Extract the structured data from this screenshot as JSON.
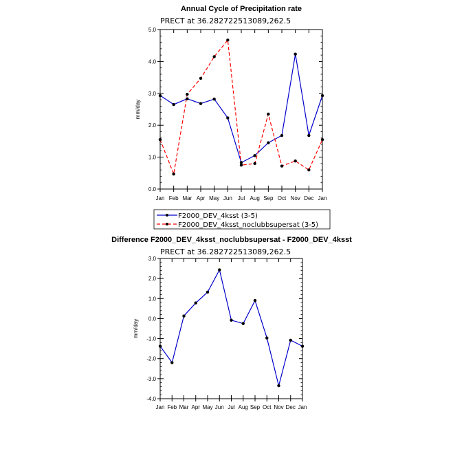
{
  "chart_data": [
    {
      "type": "line",
      "title": "Annual Cycle of Precipitation rate",
      "subtitle": "PRECT at 36.282722513089,262.5",
      "xlabel": "",
      "ylabel": "mm/day",
      "categories": [
        "Jan",
        "Feb",
        "Mar",
        "Apr",
        "May",
        "Jun",
        "Jul",
        "Aug",
        "Sep",
        "Oct",
        "Nov",
        "Dec",
        "Jan"
      ],
      "ylim": [
        0,
        5
      ],
      "yticks": [
        "0.0",
        "1.0",
        "2.0",
        "3.0",
        "4.0",
        "5.0"
      ],
      "legend_position": "bottom",
      "series": [
        {
          "name": "F2000_DEV_4ksst (3-5)",
          "color": "#0000cc",
          "dash": "solid",
          "values": [
            2.93,
            2.65,
            2.83,
            2.68,
            2.82,
            2.23,
            0.83,
            1.05,
            1.45,
            1.68,
            4.23,
            1.68,
            2.93
          ]
        },
        {
          "name": "F2000_DEV_4ksst_noclubbsupersat (3-5)",
          "color": "#ff0000",
          "dash": "dashed",
          "values": [
            1.55,
            0.47,
            2.97,
            3.47,
            4.15,
            4.67,
            0.75,
            0.8,
            2.35,
            0.72,
            0.88,
            0.6,
            1.55
          ]
        }
      ]
    },
    {
      "type": "line",
      "title": "Difference F2000_DEV_4ksst_noclubbsupersat - F2000_DEV_4ksst",
      "subtitle": "PRECT at 36.282722513089,262.5",
      "xlabel": "",
      "ylabel": "mm/day",
      "categories": [
        "Jan",
        "Feb",
        "Mar",
        "Apr",
        "May",
        "Jun",
        "Jul",
        "Aug",
        "Sep",
        "Oct",
        "Nov",
        "Dec",
        "Jan"
      ],
      "ylim": [
        -4,
        3
      ],
      "yticks": [
        "-4.0",
        "-3.0",
        "-2.0",
        "-1.0",
        "0.0",
        "1.0",
        "2.0",
        "3.0"
      ],
      "series": [
        {
          "name": "Difference",
          "color": "#0000cc",
          "dash": "solid",
          "values": [
            -1.38,
            -2.2,
            0.13,
            0.78,
            1.32,
            2.43,
            -0.08,
            -0.25,
            0.9,
            -0.97,
            -3.35,
            -1.08,
            -1.38
          ]
        }
      ]
    }
  ]
}
